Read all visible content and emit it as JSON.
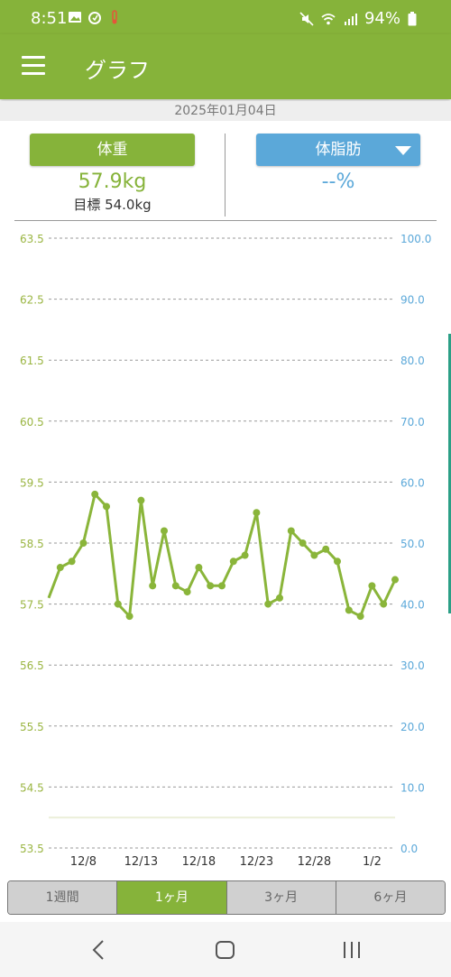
{
  "status_bar": {
    "time": "8:51",
    "battery": "94%"
  },
  "app_bar": {
    "title": "グラフ"
  },
  "date": "2025年01月04日",
  "weight_panel": {
    "label": "体重",
    "value": "57.9kg",
    "goal": "目標 54.0kg"
  },
  "fat_panel": {
    "label": "体脂肪",
    "value": "--%"
  },
  "chart_data": {
    "type": "line",
    "series": [
      {
        "axis": "left",
        "color": "#8ab53a",
        "values": [
          57.6,
          58.1,
          58.2,
          58.5,
          59.3,
          59.1,
          57.5,
          57.3,
          59.2,
          57.8,
          58.7,
          57.8,
          57.7,
          58.1,
          57.8,
          57.8,
          58.2,
          58.3,
          59.0,
          57.5,
          57.6,
          58.7,
          58.5,
          58.3,
          58.4,
          58.2,
          57.4,
          57.3,
          57.8,
          57.5,
          57.9
        ]
      }
    ],
    "goal_line": 54.0,
    "left_axis": {
      "min": 53.5,
      "max": 63.5,
      "ticks": [
        "63.5",
        "62.5",
        "61.5",
        "60.5",
        "59.5",
        "58.5",
        "57.5",
        "56.5",
        "55.5",
        "54.5",
        "53.5"
      ],
      "color": "#9ab542"
    },
    "right_axis": {
      "min": 0,
      "max": 100,
      "ticks": [
        "100.0",
        "90.0",
        "80.0",
        "70.0",
        "60.0",
        "50.0",
        "40.0",
        "30.0",
        "20.0",
        "10.0",
        "0.0"
      ],
      "color": "#5ba8d9"
    },
    "x_tick_labels": [
      "12/8",
      "12/13",
      "12/18",
      "12/23",
      "12/28",
      "1/2"
    ],
    "grid": true
  },
  "tabs": [
    {
      "label": "1週間",
      "active": false
    },
    {
      "label": "1ヶ月",
      "active": true
    },
    {
      "label": "3ヶ月",
      "active": false
    },
    {
      "label": "6ヶ月",
      "active": false
    }
  ],
  "icons": [
    "menu-icon",
    "back-icon",
    "home-icon",
    "recents-icon",
    "mute-icon",
    "wifi-icon",
    "signal-icon",
    "battery-icon"
  ]
}
